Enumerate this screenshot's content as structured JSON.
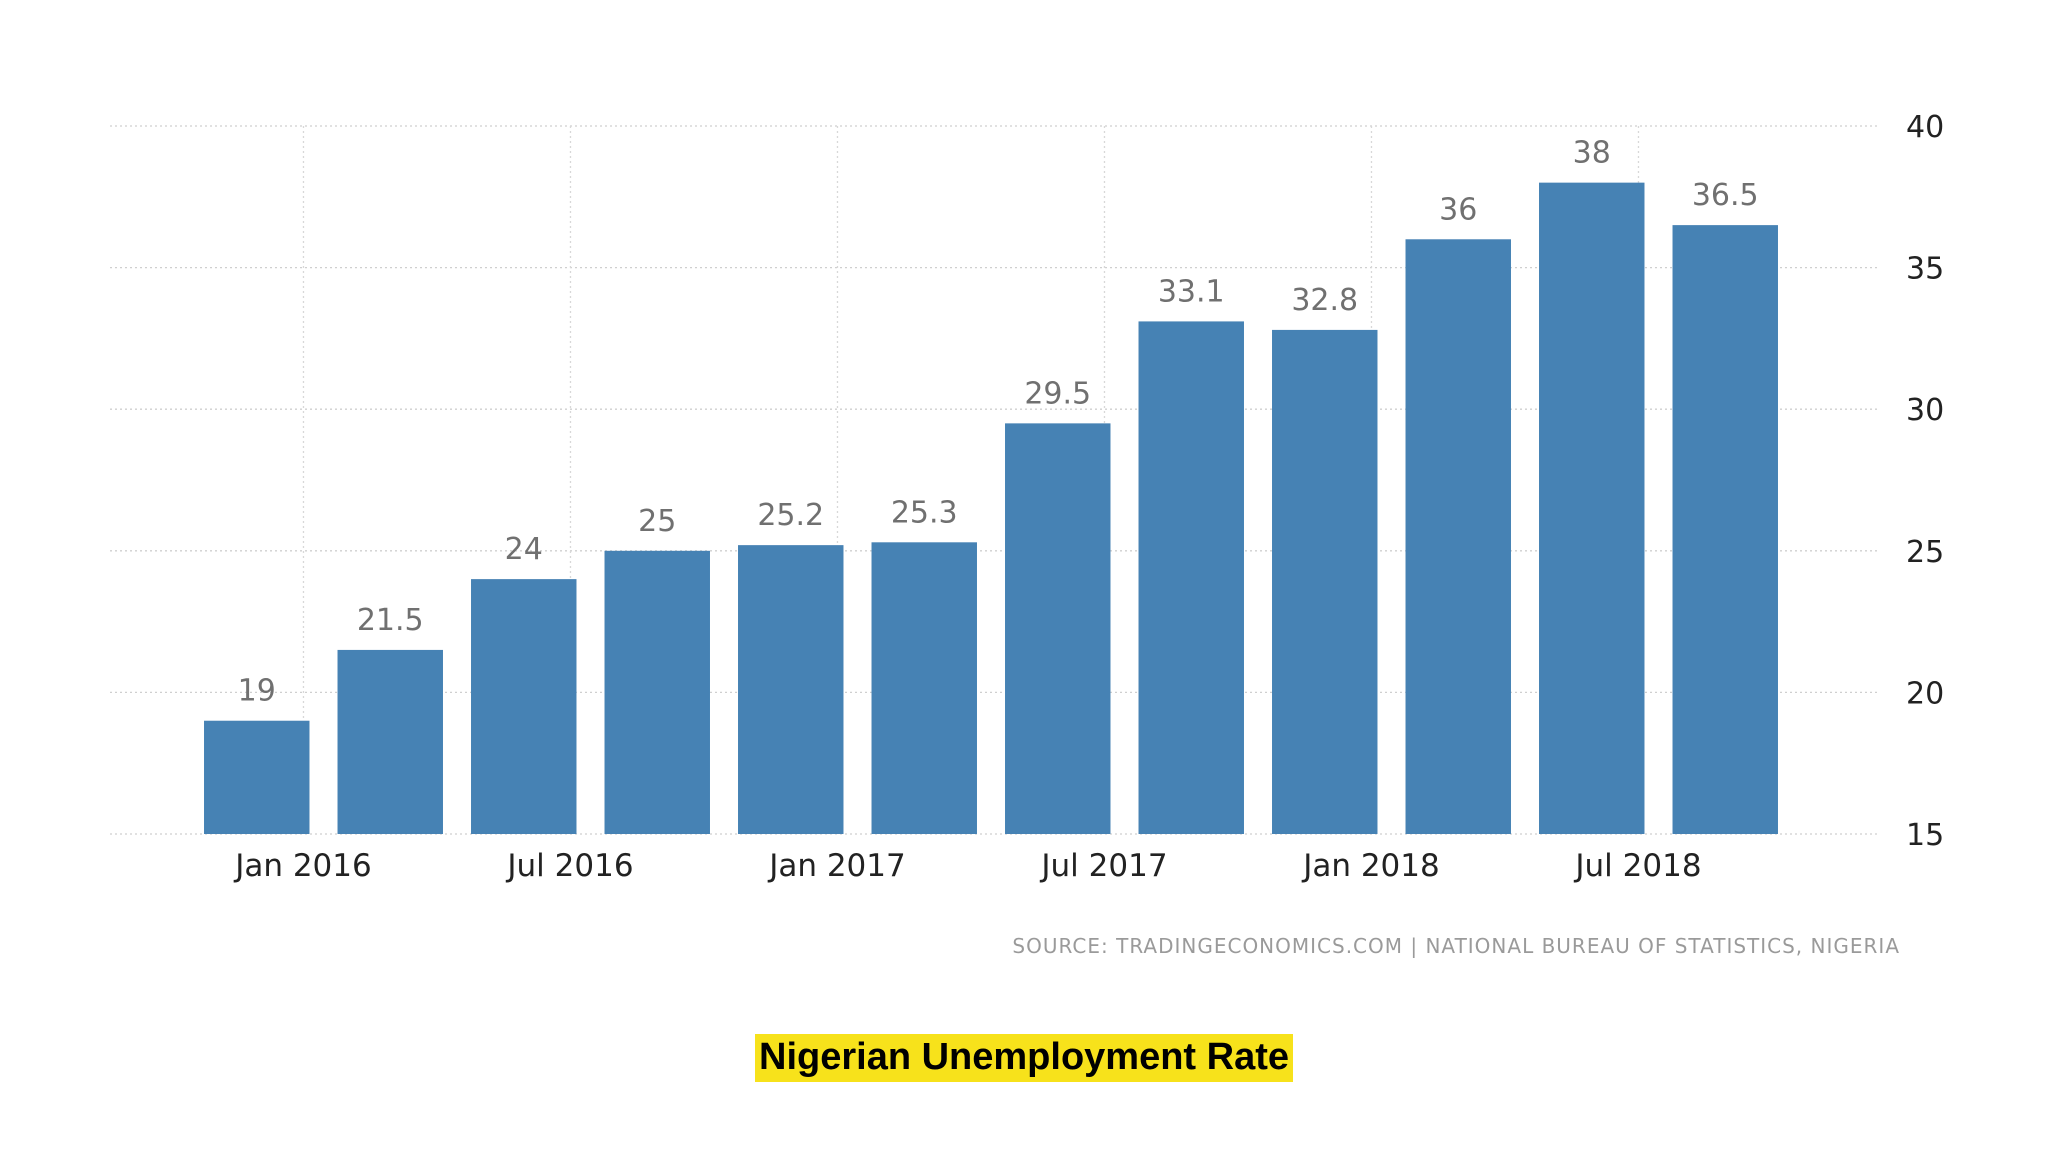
{
  "chart_data": {
    "type": "bar",
    "title": "",
    "xlabel": "",
    "ylabel": "",
    "ylim": [
      15,
      40
    ],
    "yticks": [
      15,
      20,
      25,
      30,
      35,
      40
    ],
    "y_axis_side": "right",
    "grid": true,
    "bar_color": "#4682b4",
    "values": [
      19,
      21.5,
      24,
      25,
      25.2,
      25.3,
      29.5,
      33.1,
      32.8,
      36,
      38,
      36.5
    ],
    "data_labels": [
      "19",
      "21.5",
      "24",
      "25",
      "25.2",
      "25.3",
      "29.5",
      "33.1",
      "32.8",
      "36",
      "38",
      "36.5"
    ],
    "x_tick_labels": [
      {
        "label": "Jan 2016",
        "bar_index": 0.35
      },
      {
        "label": "Jul 2016",
        "bar_index": 2.35
      },
      {
        "label": "Jan 2017",
        "bar_index": 4.35
      },
      {
        "label": "Jul 2017",
        "bar_index": 6.35
      },
      {
        "label": "Jan 2018",
        "bar_index": 8.35
      },
      {
        "label": "Jul 2018",
        "bar_index": 10.35
      }
    ]
  },
  "source_text": "SOURCE: TRADINGECONOMICS.COM | NATIONAL BUREAU OF STATISTICS, NIGERIA",
  "caption": "Nigerian Unemployment Rate"
}
